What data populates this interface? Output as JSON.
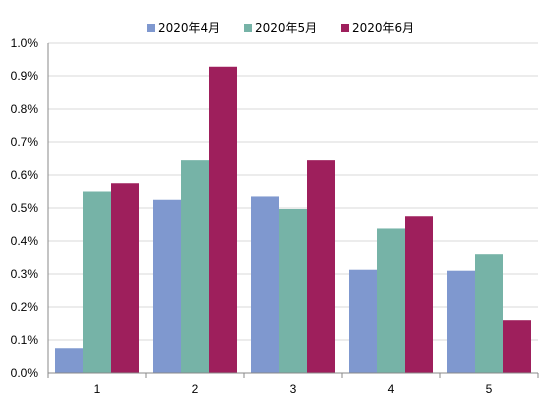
{
  "chart_data": {
    "type": "bar",
    "categories": [
      "1",
      "2",
      "3",
      "4",
      "5"
    ],
    "series": [
      {
        "name": "2020年4月",
        "color": "#7f98cf",
        "values": [
          0.075,
          0.525,
          0.535,
          0.313,
          0.31
        ]
      },
      {
        "name": "2020年5月",
        "color": "#76b3a7",
        "values": [
          0.55,
          0.645,
          0.497,
          0.438,
          0.36
        ]
      },
      {
        "name": "2020年6月",
        "color": "#9e1f5c",
        "values": [
          0.575,
          0.928,
          0.645,
          0.475,
          0.16
        ]
      }
    ],
    "ylim": [
      0,
      1.0
    ],
    "yticks": [
      "0.0%",
      "0.1%",
      "0.2%",
      "0.3%",
      "0.4%",
      "0.5%",
      "0.6%",
      "0.7%",
      "0.8%",
      "0.9%",
      "1.0%"
    ],
    "ytick_values": [
      0,
      0.1,
      0.2,
      0.3,
      0.4,
      0.5,
      0.6,
      0.7,
      0.8,
      0.9,
      1.0
    ],
    "grid": true,
    "legend_position": "top-center",
    "title": "",
    "xlabel": "",
    "ylabel": ""
  }
}
